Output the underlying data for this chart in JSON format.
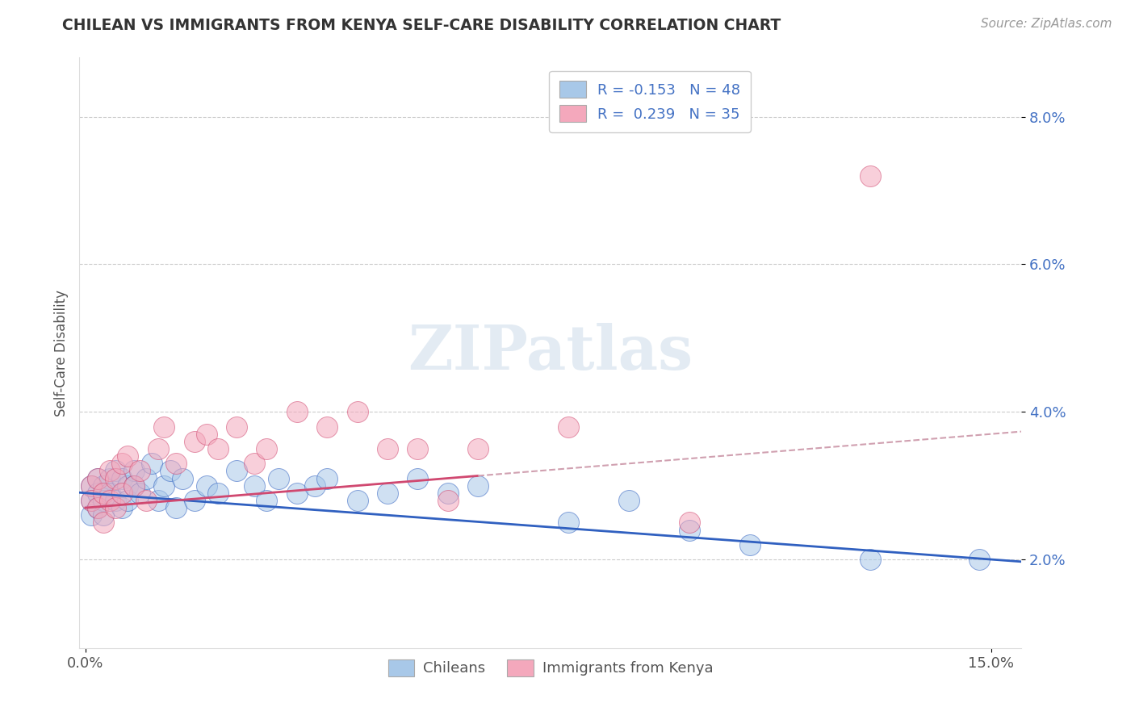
{
  "title": "CHILEAN VS IMMIGRANTS FROM KENYA SELF-CARE DISABILITY CORRELATION CHART",
  "source": "Source: ZipAtlas.com",
  "ylabel": "Self-Care Disability",
  "xlim": [
    -0.001,
    0.155
  ],
  "ylim": [
    0.008,
    0.088
  ],
  "yticks": [
    0.02,
    0.04,
    0.06,
    0.08
  ],
  "xticks": [
    0.0,
    0.15
  ],
  "xtick_labels": [
    "0.0%",
    "15.0%"
  ],
  "ytick_labels": [
    "2.0%",
    "4.0%",
    "6.0%",
    "8.0%"
  ],
  "chilean_color": "#a8c8e8",
  "kenya_color": "#f4a8bc",
  "chilean_line_color": "#3060c0",
  "kenya_line_color": "#d04870",
  "kenya_line_dashed_color": "#d0a0b0",
  "legend_labels": [
    "Chileans",
    "Immigrants from Kenya"
  ],
  "R_chilean": -0.153,
  "N_chilean": 48,
  "R_kenya": 0.239,
  "N_kenya": 35,
  "background_color": "#ffffff",
  "chilean_x": [
    0.001,
    0.001,
    0.001,
    0.002,
    0.002,
    0.002,
    0.003,
    0.003,
    0.003,
    0.004,
    0.004,
    0.005,
    0.005,
    0.006,
    0.006,
    0.007,
    0.007,
    0.008,
    0.008,
    0.009,
    0.01,
    0.011,
    0.012,
    0.013,
    0.014,
    0.015,
    0.016,
    0.018,
    0.02,
    0.022,
    0.025,
    0.028,
    0.03,
    0.032,
    0.035,
    0.038,
    0.04,
    0.045,
    0.05,
    0.055,
    0.06,
    0.065,
    0.08,
    0.09,
    0.1,
    0.11,
    0.13,
    0.148
  ],
  "chilean_y": [
    0.03,
    0.028,
    0.026,
    0.031,
    0.029,
    0.027,
    0.03,
    0.028,
    0.026,
    0.031,
    0.029,
    0.032,
    0.028,
    0.031,
    0.027,
    0.03,
    0.028,
    0.032,
    0.03,
    0.029,
    0.031,
    0.033,
    0.028,
    0.03,
    0.032,
    0.027,
    0.031,
    0.028,
    0.03,
    0.029,
    0.032,
    0.03,
    0.028,
    0.031,
    0.029,
    0.03,
    0.031,
    0.028,
    0.029,
    0.031,
    0.029,
    0.03,
    0.025,
    0.028,
    0.024,
    0.022,
    0.02,
    0.02
  ],
  "kenya_x": [
    0.001,
    0.001,
    0.002,
    0.002,
    0.003,
    0.003,
    0.004,
    0.004,
    0.005,
    0.005,
    0.006,
    0.006,
    0.007,
    0.008,
    0.009,
    0.01,
    0.012,
    0.013,
    0.015,
    0.018,
    0.02,
    0.022,
    0.025,
    0.028,
    0.03,
    0.035,
    0.04,
    0.045,
    0.05,
    0.055,
    0.06,
    0.065,
    0.08,
    0.1,
    0.13
  ],
  "kenya_y": [
    0.03,
    0.028,
    0.031,
    0.027,
    0.029,
    0.025,
    0.032,
    0.028,
    0.031,
    0.027,
    0.033,
    0.029,
    0.034,
    0.03,
    0.032,
    0.028,
    0.035,
    0.038,
    0.033,
    0.036,
    0.037,
    0.035,
    0.038,
    0.033,
    0.035,
    0.04,
    0.038,
    0.04,
    0.035,
    0.035,
    0.028,
    0.035,
    0.038,
    0.025,
    0.072
  ]
}
